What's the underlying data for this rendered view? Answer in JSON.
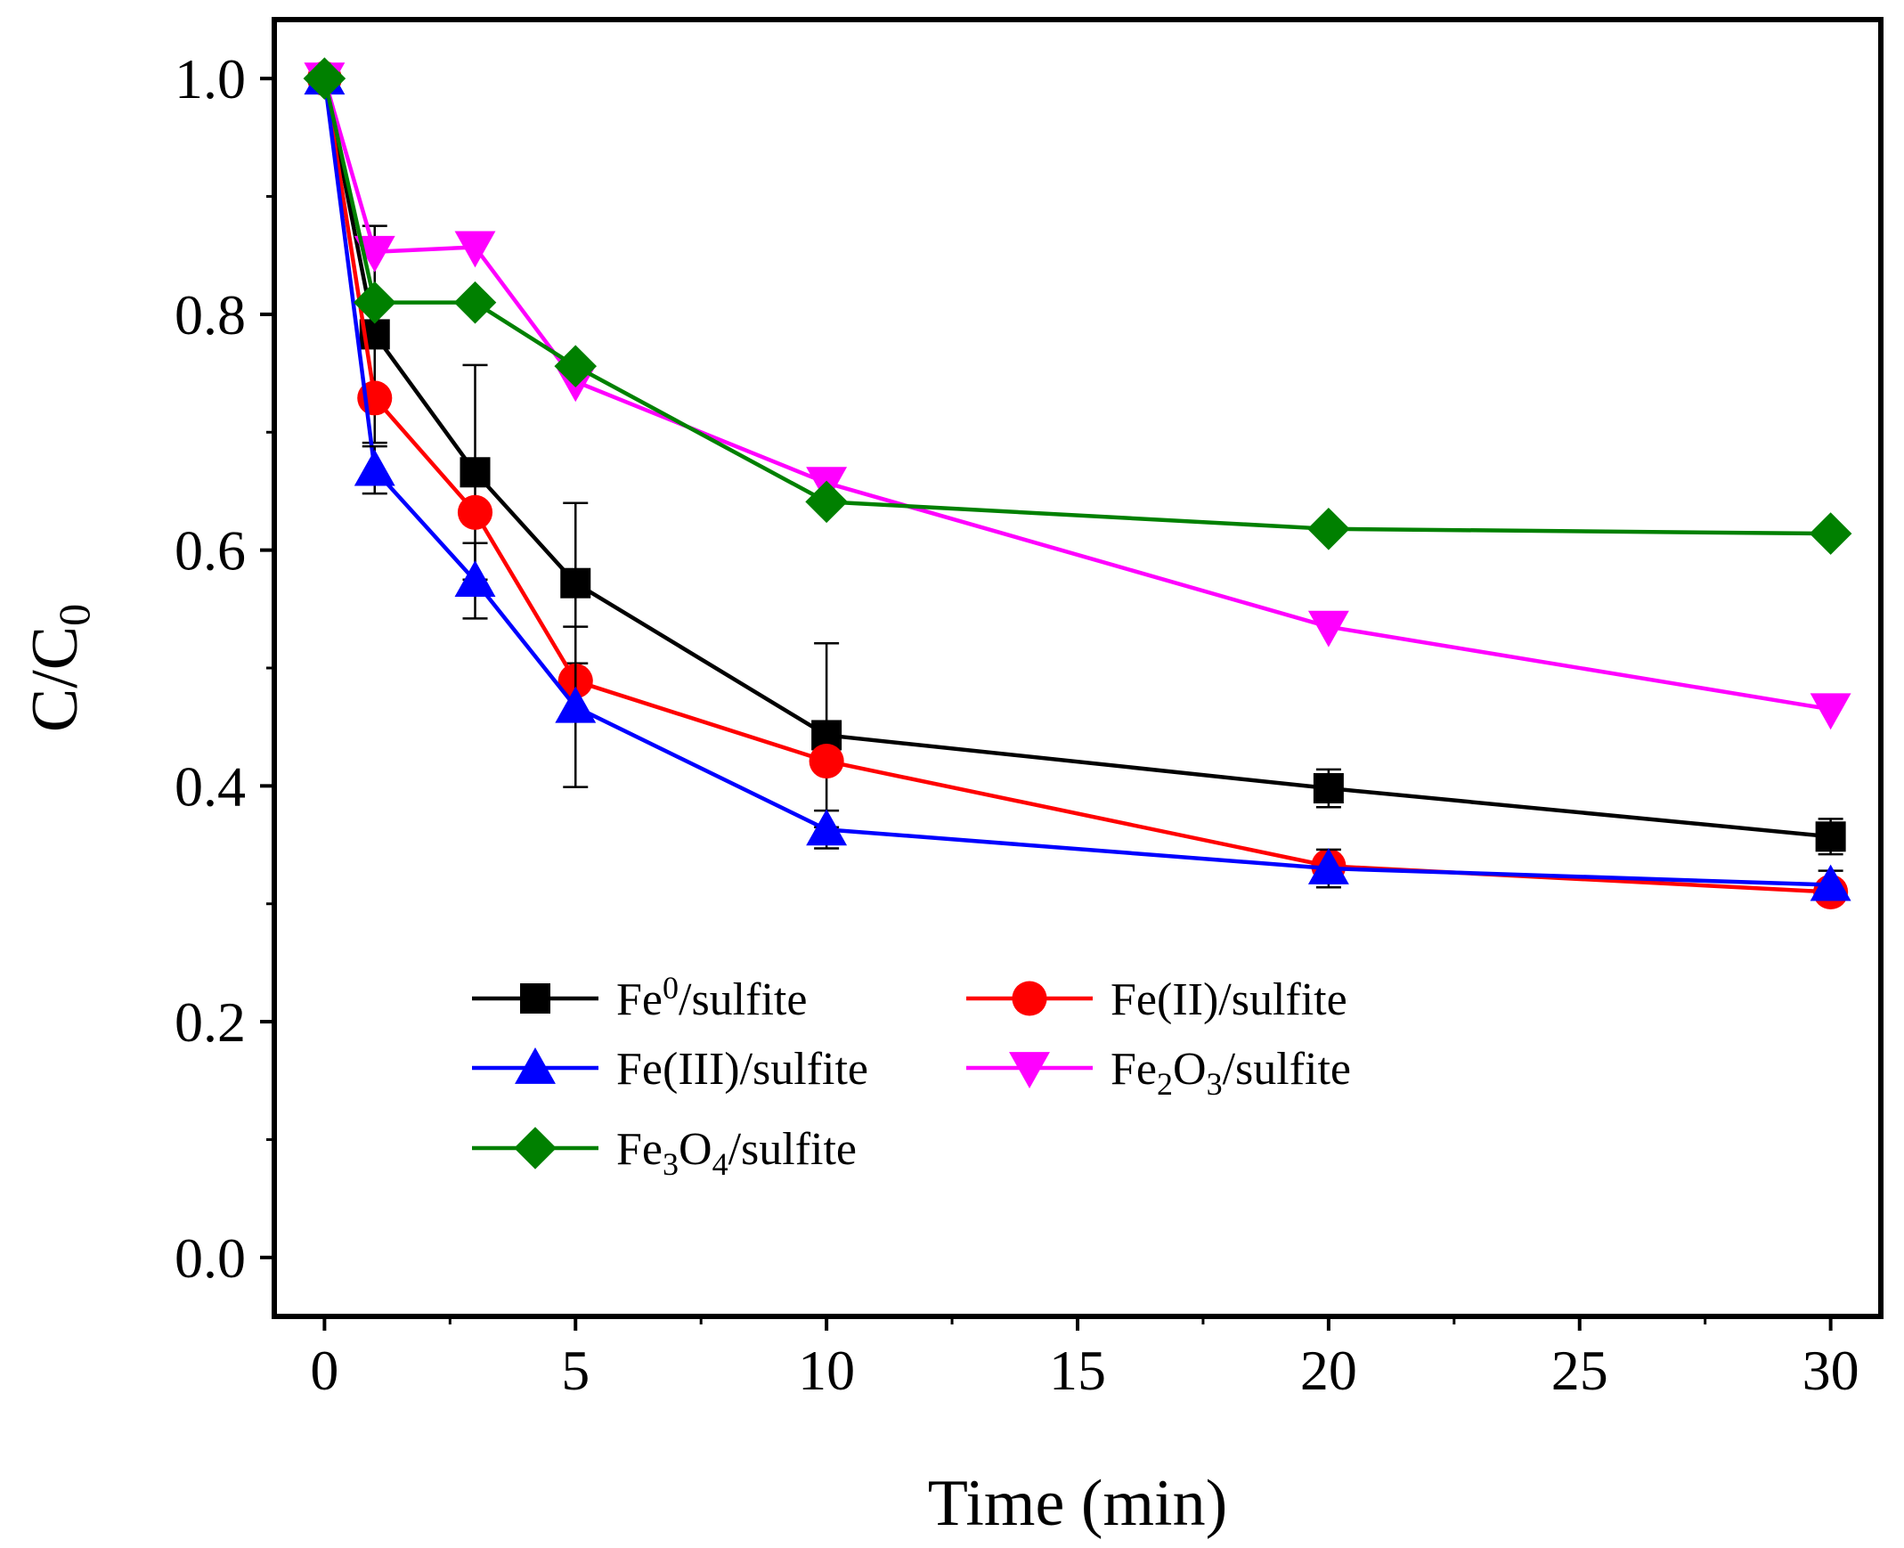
{
  "chart_data": {
    "type": "line",
    "xlabel": "Time (min)",
    "ylabel": {
      "base": "C/C",
      "sub": "0"
    },
    "xlim": [
      -1,
      31
    ],
    "ylim": [
      -0.05,
      1.05
    ],
    "xticks": [
      0,
      5,
      10,
      15,
      20,
      25,
      30
    ],
    "xtick_labels": [
      "0",
      "5",
      "10",
      "15",
      "20",
      "25",
      "30"
    ],
    "yticks": [
      0.0,
      0.2,
      0.4,
      0.6,
      0.8,
      1.0
    ],
    "ytick_labels": [
      "0.0",
      "0.2",
      "0.4",
      "0.6",
      "0.8",
      "1.0"
    ],
    "x": [
      0,
      1,
      3,
      5,
      10,
      20,
      30
    ],
    "series": [
      {
        "name": "Fe0/sulfite",
        "label_parts": [
          {
            "t": "Fe"
          },
          {
            "t": "0",
            "sup": true
          },
          {
            "t": "/sulfite"
          }
        ],
        "color": "#000000",
        "marker": "square",
        "values": [
          1.0,
          0.783,
          0.666,
          0.572,
          0.443,
          0.398,
          0.357
        ],
        "errors": [
          0.0,
          0.092,
          0.091,
          0.068,
          0.078,
          0.016,
          0.015
        ]
      },
      {
        "name": "Fe(II)/sulfite",
        "label_parts": [
          {
            "t": "Fe(II)/sulfite"
          }
        ],
        "color": "#ff0000",
        "marker": "circle",
        "values": [
          1.0,
          0.729,
          0.632,
          0.489,
          0.421,
          0.332,
          0.31
        ],
        "errors": [
          0.0,
          0.0,
          0.0,
          0.0,
          0.0,
          0.0,
          0.0
        ]
      },
      {
        "name": "Fe(III)/sulfite",
        "label_parts": [
          {
            "t": "Fe(III)/sulfite"
          }
        ],
        "color": "#0000ff",
        "marker": "triangle-up",
        "values": [
          1.0,
          0.668,
          0.574,
          0.467,
          0.363,
          0.33,
          0.316
        ],
        "errors": [
          0.0,
          0.02,
          0.032,
          0.068,
          0.016,
          0.016,
          0.012
        ]
      },
      {
        "name": "Fe2O3/sulfite",
        "label_parts": [
          {
            "t": "Fe"
          },
          {
            "t": "2",
            "sub": true
          },
          {
            "t": "O"
          },
          {
            "t": "3",
            "sub": true
          },
          {
            "t": "/sulfite"
          }
        ],
        "color": "#ff00ff",
        "marker": "triangle-down",
        "values": [
          1.0,
          0.853,
          0.857,
          0.743,
          0.657,
          0.535,
          0.465
        ],
        "errors": [
          0.0,
          0.0,
          0.0,
          0.0,
          0.0,
          0.0,
          0.0
        ]
      },
      {
        "name": "Fe3O4/sulfite",
        "label_parts": [
          {
            "t": "Fe"
          },
          {
            "t": "3",
            "sub": true
          },
          {
            "t": "O"
          },
          {
            "t": "4",
            "sub": true
          },
          {
            "t": "/sulfite"
          }
        ],
        "color": "#008000",
        "marker": "diamond",
        "values": [
          1.0,
          0.81,
          0.81,
          0.756,
          0.641,
          0.618,
          0.614
        ],
        "errors": [
          0.0,
          0.0,
          0.0,
          0.0,
          0.0,
          0.0,
          0.0
        ]
      }
    ],
    "legend": {
      "placement": "lower-left, two columns",
      "order": [
        "Fe0/sulfite",
        "Fe(II)/sulfite",
        "Fe(III)/sulfite",
        "Fe2O3/sulfite",
        "Fe3O4/sulfite"
      ]
    }
  }
}
